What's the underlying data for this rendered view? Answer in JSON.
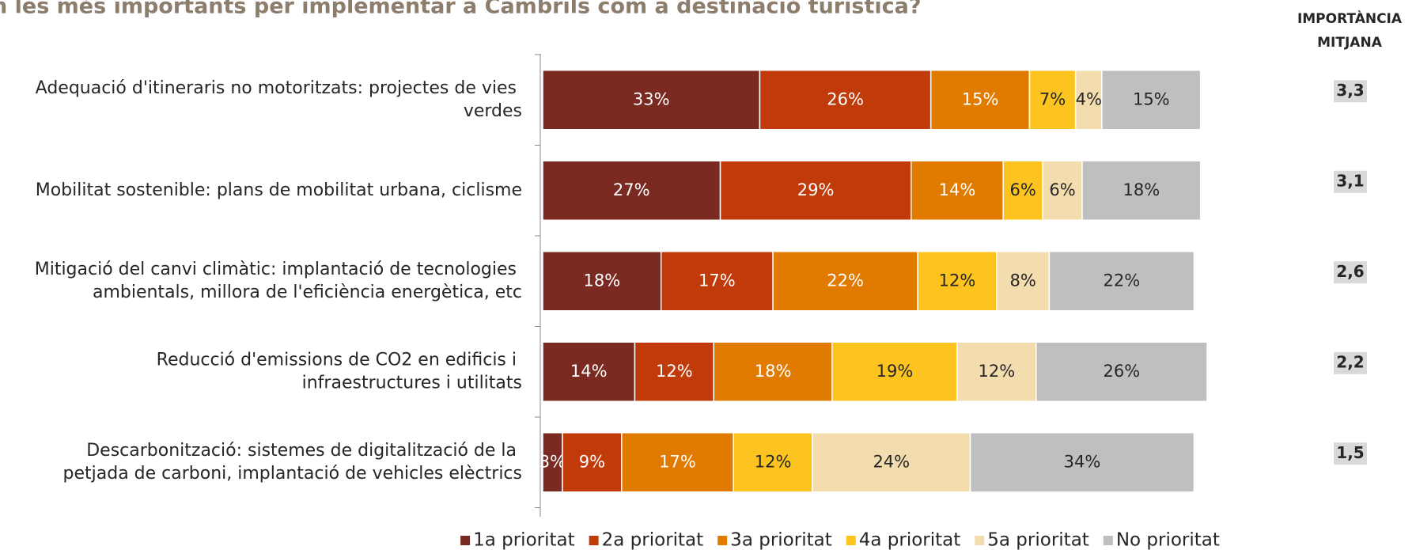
{
  "chart_data": {
    "type": "stacked-bar-horizontal",
    "title": "n les més importants per implementar a Cambrils com a destinació turística?",
    "categories": [
      "Adequació d'itineraris no motoritzats: projectes de vies verdes",
      "Mobilitat sostenible: plans de mobilitat urbana, ciclisme",
      "Mitigació del canvi climàtic: implantació de tecnologies ambientals, millora de l'eficiència energètica, etc",
      "Reducció d'emissions de CO2 en edificis i infraestructures i utilitats",
      "Descarbonització: sistemes de digitalització de la petjada de carboni, implantació de vehicles elèctrics"
    ],
    "xlim": [
      0,
      101
    ],
    "series": [
      {
        "name": "1a prioritat",
        "color": "#7b2a22",
        "label_color": "#ffffff",
        "values": [
          33,
          27,
          18,
          14,
          3
        ],
        "value_labels": [
          "33%",
          "27%",
          "18%",
          "14%",
          "3%"
        ]
      },
      {
        "name": "2a prioritat",
        "color": "#c13b0a",
        "label_color": "#ffffff",
        "values": [
          26,
          29,
          17,
          12,
          9
        ],
        "value_labels": [
          "26%",
          "29%",
          "17%",
          "12%",
          "9%"
        ]
      },
      {
        "name": "3a prioritat",
        "color": "#e07b00",
        "label_color": "#ffffff",
        "values": [
          15,
          14,
          22,
          18,
          17
        ],
        "value_labels": [
          "15%",
          "14%",
          "22%",
          "18%",
          "17%"
        ]
      },
      {
        "name": "4a prioritat",
        "color": "#fdc41f",
        "label_color": "#262626",
        "values": [
          7,
          6,
          12,
          19,
          12
        ],
        "value_labels": [
          "7%",
          "6%",
          "12%",
          "19%",
          "12%"
        ]
      },
      {
        "name": "5a prioritat",
        "color": "#f3dcae",
        "label_color": "#262626",
        "values": [
          4,
          6,
          8,
          12,
          24
        ],
        "value_labels": [
          "4%",
          "6%",
          "8%",
          "12%",
          "24%"
        ]
      },
      {
        "name": "No prioritat",
        "color": "#bfbfbf",
        "label_color": "#262626",
        "values": [
          15,
          18,
          22,
          26,
          34
        ],
        "value_labels": [
          "15%",
          "18%",
          "22%",
          "26%",
          "34%"
        ]
      }
    ],
    "importance": {
      "title_lines": [
        "IMPORTÀNCIA",
        "MITJANA"
      ],
      "values": [
        3.3,
        3.1,
        2.6,
        2.2,
        1.5
      ],
      "value_labels": [
        "3,3",
        "3,1",
        "2,6",
        "2,2",
        "1,5"
      ]
    }
  }
}
